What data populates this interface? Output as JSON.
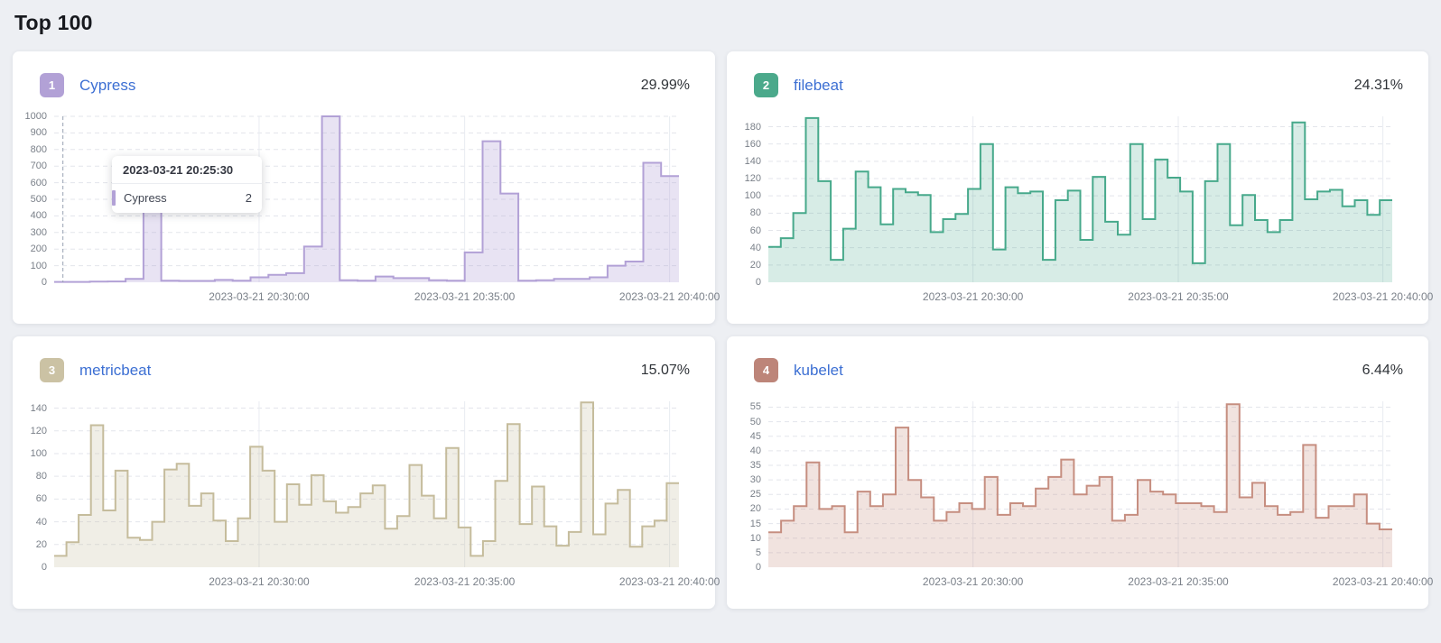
{
  "page": {
    "title": "Top 100"
  },
  "cards": [
    {
      "rank": "1",
      "name": "Cypress",
      "percent": "29.99%",
      "badge_color": "#b2a1d6",
      "tooltip": {
        "title": "2023-03-21 20:25:30",
        "series": "Cypress",
        "value": "2"
      },
      "chart": {
        "type": "area-step",
        "stroke": "#b2a1d6",
        "fill": "rgba(178,161,214,0.30)",
        "y_max": 1000,
        "y_ticks": [
          0,
          100,
          200,
          300,
          400,
          500,
          600,
          700,
          800,
          900,
          1000
        ],
        "x_ticks": [
          {
            "label": "2023-03-21 20:30:00",
            "pos": 0.328
          },
          {
            "label": "2023-03-21 20:35:00",
            "pos": 0.657
          },
          {
            "label": "2023-03-21 20:40:00",
            "pos": 0.985
          }
        ],
        "crosshair_pos": 0.014,
        "values": [
          2,
          2,
          4,
          5,
          20,
          500,
          10,
          8,
          8,
          14,
          10,
          30,
          45,
          55,
          215,
          1000,
          12,
          10,
          35,
          25,
          25,
          12,
          10,
          180,
          850,
          535,
          10,
          12,
          20,
          20,
          30,
          100,
          125,
          720,
          640
        ]
      }
    },
    {
      "rank": "2",
      "name": "filebeat",
      "percent": "24.31%",
      "badge_color": "#4ba98b",
      "chart": {
        "type": "area-step",
        "stroke": "#47a98b",
        "fill": "rgba(71,169,139,0.22)",
        "y_max": 192,
        "y_ticks": [
          0,
          20,
          40,
          60,
          80,
          100,
          120,
          140,
          160,
          180
        ],
        "x_ticks": [
          {
            "label": "2023-03-21 20:30:00",
            "pos": 0.328
          },
          {
            "label": "2023-03-21 20:35:00",
            "pos": 0.657
          },
          {
            "label": "2023-03-21 20:40:00",
            "pos": 0.985
          }
        ],
        "values": [
          41,
          51,
          80,
          190,
          117,
          26,
          62,
          128,
          110,
          67,
          108,
          104,
          101,
          58,
          73,
          79,
          108,
          160,
          38,
          110,
          103,
          105,
          26,
          95,
          106,
          49,
          122,
          70,
          55,
          160,
          73,
          142,
          121,
          105,
          22,
          117,
          160,
          66,
          101,
          72,
          58,
          72,
          185,
          96,
          105,
          107,
          88,
          95,
          78,
          95
        ]
      }
    },
    {
      "rank": "3",
      "name": "metricbeat",
      "percent": "15.07%",
      "badge_color": "#cbc2a4",
      "chart": {
        "type": "area-step",
        "stroke": "#c5bc9c",
        "fill": "rgba(197,188,156,0.25)",
        "y_max": 146,
        "y_ticks": [
          0,
          20,
          40,
          60,
          80,
          100,
          120,
          140
        ],
        "x_ticks": [
          {
            "label": "2023-03-21 20:30:00",
            "pos": 0.328
          },
          {
            "label": "2023-03-21 20:35:00",
            "pos": 0.657
          },
          {
            "label": "2023-03-21 20:40:00",
            "pos": 0.985
          }
        ],
        "values": [
          10,
          22,
          46,
          125,
          50,
          85,
          26,
          24,
          40,
          86,
          91,
          54,
          65,
          41,
          23,
          43,
          106,
          85,
          40,
          73,
          55,
          81,
          58,
          48,
          53,
          65,
          72,
          34,
          45,
          90,
          63,
          43,
          105,
          35,
          10,
          23,
          76,
          126,
          38,
          71,
          36,
          19,
          31,
          145,
          29,
          56,
          68,
          18,
          36,
          41,
          74
        ]
      }
    },
    {
      "rank": "4",
      "name": "kubelet",
      "percent": "6.44%",
      "badge_color": "#bd8579",
      "chart": {
        "type": "area-step",
        "stroke": "#c68e80",
        "fill": "rgba(198,142,128,0.25)",
        "y_max": 57,
        "y_ticks": [
          0,
          5,
          10,
          15,
          20,
          25,
          30,
          35,
          40,
          45,
          50,
          55
        ],
        "x_ticks": [
          {
            "label": "2023-03-21 20:30:00",
            "pos": 0.328
          },
          {
            "label": "2023-03-21 20:35:00",
            "pos": 0.657
          },
          {
            "label": "2023-03-21 20:40:00",
            "pos": 0.985
          }
        ],
        "values": [
          12,
          16,
          21,
          36,
          20,
          21,
          12,
          26,
          21,
          25,
          48,
          30,
          24,
          16,
          19,
          22,
          20,
          31,
          18,
          22,
          21,
          27,
          31,
          37,
          25,
          28,
          31,
          16,
          18,
          30,
          26,
          25,
          22,
          22,
          21,
          19,
          56,
          24,
          29,
          21,
          18,
          19,
          42,
          17,
          21,
          21,
          25,
          15,
          13
        ]
      }
    }
  ]
}
